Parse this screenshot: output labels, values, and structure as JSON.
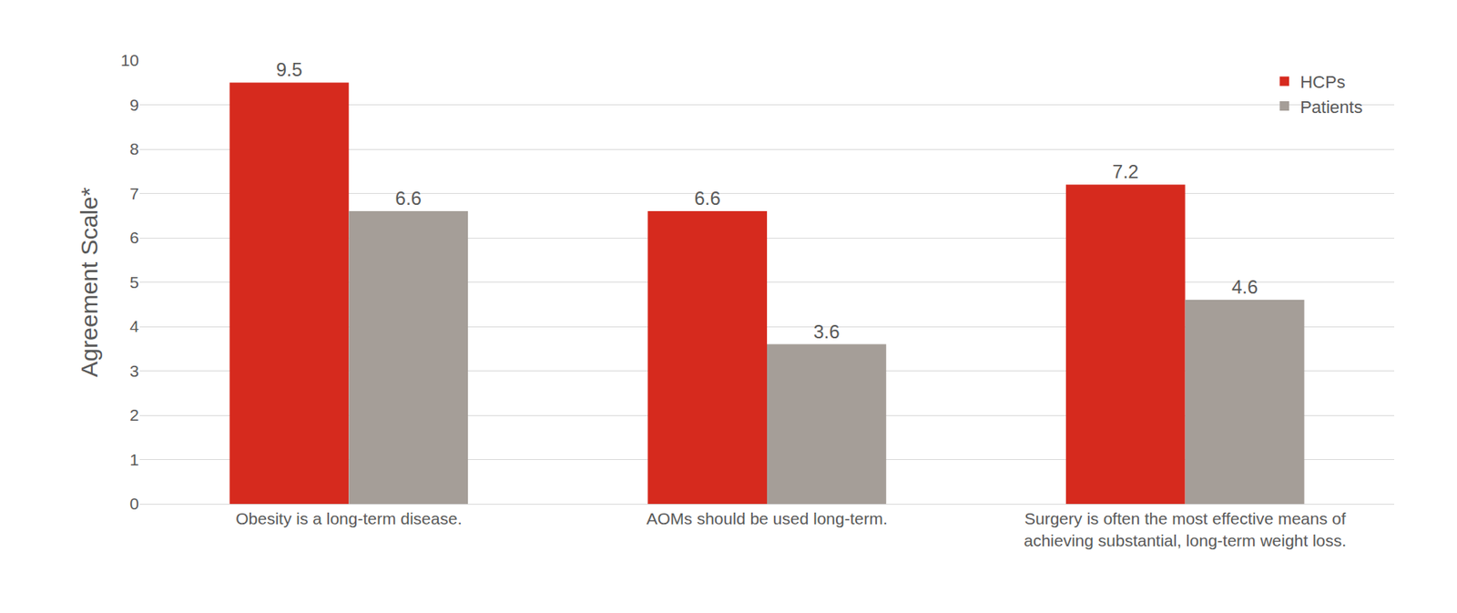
{
  "chart_data": {
    "type": "bar",
    "y_label": "Agreement Scale*",
    "categories": [
      "Obesity is a long-term disease.",
      "AOMs should be used long-term.",
      "Surgery is often the most effective means of achieving substantial, long-term weight loss."
    ],
    "series": [
      {
        "name": "HCPs",
        "color": "#d62a1e",
        "values": [
          9.5,
          6.6,
          7.2
        ]
      },
      {
        "name": "Patients",
        "color": "#a59e98",
        "values": [
          6.6,
          3.6,
          4.6
        ]
      }
    ],
    "ylim": [
      0,
      10
    ],
    "yticks": [
      0,
      1,
      2,
      3,
      4,
      5,
      6,
      7,
      8,
      9,
      10
    ],
    "grid": true,
    "legend": "upper right",
    "data_labels": true
  }
}
